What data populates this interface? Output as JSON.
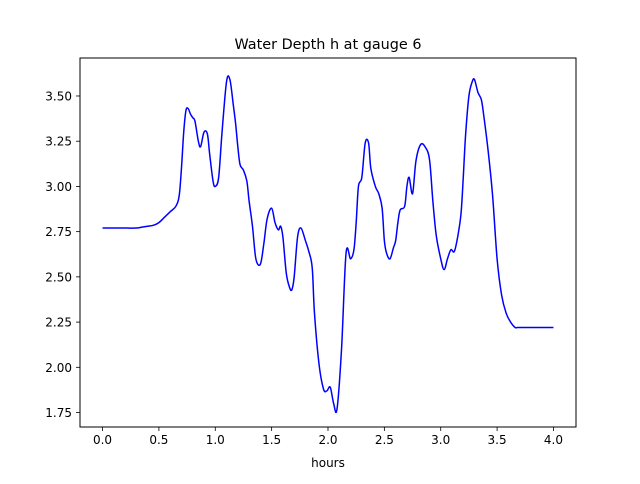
{
  "chart_data": {
    "type": "line",
    "title": "Water Depth h at gauge 6",
    "xlabel": "hours",
    "ylabel": "",
    "xlim": [
      -0.2,
      4.2
    ],
    "ylim": [
      1.67,
      3.71
    ],
    "xticks": [
      0.0,
      0.5,
      1.0,
      1.5,
      2.0,
      2.5,
      3.0,
      3.5,
      4.0
    ],
    "xtick_labels": [
      "0.0",
      "0.5",
      "1.0",
      "1.5",
      "2.0",
      "2.5",
      "3.0",
      "3.5",
      "4.0"
    ],
    "yticks": [
      1.75,
      2.0,
      2.25,
      2.5,
      2.75,
      3.0,
      3.25,
      3.5
    ],
    "ytick_labels": [
      "1.75",
      "2.00",
      "2.25",
      "2.50",
      "2.75",
      "3.00",
      "3.25",
      "3.50"
    ],
    "grid": false,
    "legend": "none",
    "series": [
      {
        "color": "#0000ff",
        "x": [
          0.0,
          0.1,
          0.2,
          0.3,
          0.35,
          0.4,
          0.45,
          0.5,
          0.55,
          0.6,
          0.65,
          0.68,
          0.7,
          0.72,
          0.74,
          0.76,
          0.78,
          0.8,
          0.82,
          0.85,
          0.87,
          0.9,
          0.93,
          0.95,
          0.98,
          1.0,
          1.03,
          1.06,
          1.1,
          1.13,
          1.16,
          1.18,
          1.2,
          1.22,
          1.25,
          1.28,
          1.3,
          1.33,
          1.36,
          1.4,
          1.43,
          1.46,
          1.5,
          1.53,
          1.56,
          1.58,
          1.6,
          1.63,
          1.66,
          1.68,
          1.7,
          1.73,
          1.76,
          1.8,
          1.83,
          1.86,
          1.88,
          1.92,
          1.96,
          1.99,
          2.02,
          2.05,
          2.08,
          2.12,
          2.16,
          2.2,
          2.23,
          2.25,
          2.27,
          2.3,
          2.33,
          2.36,
          2.38,
          2.42,
          2.45,
          2.48,
          2.5,
          2.52,
          2.55,
          2.58,
          2.6,
          2.62,
          2.64,
          2.68,
          2.7,
          2.72,
          2.75,
          2.78,
          2.82,
          2.86,
          2.9,
          2.93,
          2.96,
          3.0,
          3.03,
          3.06,
          3.09,
          3.12,
          3.15,
          3.18,
          3.2,
          3.22,
          3.25,
          3.28,
          3.3,
          3.33,
          3.36,
          3.38,
          3.42,
          3.46,
          3.5,
          3.54,
          3.58,
          3.62,
          3.66,
          3.68,
          3.72,
          3.76,
          3.8,
          3.84,
          3.88,
          3.92,
          3.96,
          4.0
        ],
        "y": [
          2.77,
          2.77,
          2.77,
          2.77,
          2.775,
          2.78,
          2.785,
          2.8,
          2.83,
          2.86,
          2.89,
          2.95,
          3.1,
          3.3,
          3.42,
          3.43,
          3.4,
          3.38,
          3.36,
          3.25,
          3.22,
          3.3,
          3.29,
          3.18,
          3.03,
          3.0,
          3.05,
          3.3,
          3.58,
          3.59,
          3.45,
          3.35,
          3.22,
          3.12,
          3.09,
          3.03,
          2.92,
          2.78,
          2.6,
          2.57,
          2.68,
          2.82,
          2.88,
          2.8,
          2.76,
          2.78,
          2.72,
          2.52,
          2.44,
          2.43,
          2.5,
          2.72,
          2.77,
          2.7,
          2.64,
          2.55,
          2.3,
          2.02,
          1.88,
          1.87,
          1.89,
          1.8,
          1.77,
          2.1,
          2.63,
          2.6,
          2.65,
          2.8,
          3.0,
          3.05,
          3.24,
          3.24,
          3.1,
          3.0,
          2.96,
          2.88,
          2.7,
          2.63,
          2.6,
          2.66,
          2.7,
          2.8,
          2.87,
          2.89,
          3.0,
          3.05,
          2.96,
          3.14,
          3.23,
          3.22,
          3.15,
          2.92,
          2.73,
          2.6,
          2.54,
          2.6,
          2.65,
          2.64,
          2.72,
          2.85,
          3.05,
          3.28,
          3.5,
          3.58,
          3.59,
          3.52,
          3.48,
          3.4,
          3.2,
          2.95,
          2.6,
          2.4,
          2.3,
          2.25,
          2.22,
          2.22,
          2.22,
          2.22,
          2.22,
          2.22,
          2.22,
          2.22,
          2.22,
          2.22
        ]
      }
    ]
  }
}
